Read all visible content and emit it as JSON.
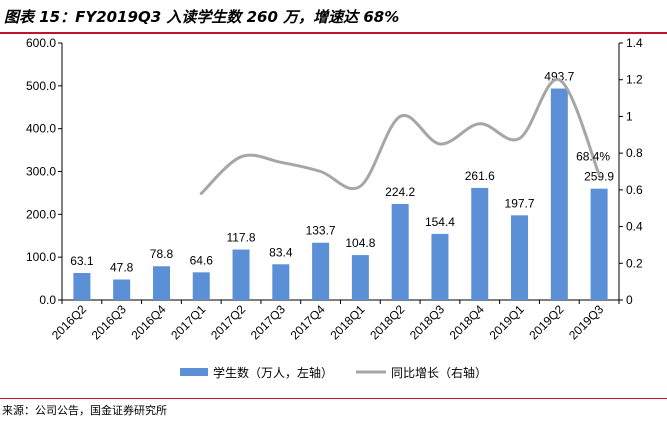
{
  "header": {
    "title": "图表 15：FY2019Q3 入读学生数 260 万，增速达 68%"
  },
  "footer": {
    "source": "来源：公司公告，国金证券研究所"
  },
  "colors": {
    "bar": "#5b8fd6",
    "line": "#a6a6a6",
    "rule": "#c8102e"
  },
  "chart_data": {
    "type": "bar",
    "categories": [
      "2016Q2",
      "2016Q3",
      "2016Q4",
      "2017Q1",
      "2017Q2",
      "2017Q3",
      "2017Q4",
      "2018Q1",
      "2018Q2",
      "2018Q3",
      "2018Q4",
      "2019Q1",
      "2019Q2",
      "2019Q3"
    ],
    "series": [
      {
        "name": "学生数（万人，左轴）",
        "type": "bar",
        "axis": "left",
        "values": [
          63.1,
          47.8,
          78.8,
          64.6,
          117.8,
          83.4,
          133.7,
          104.8,
          224.2,
          154.4,
          261.6,
          197.7,
          493.7,
          259.9
        ],
        "labels": [
          "63.1",
          "47.8",
          "78.8",
          "64.6",
          "117.8",
          "83.4",
          "133.7",
          "104.8",
          "224.2",
          "154.4",
          "261.6",
          "197.7",
          "493.7",
          "259.9"
        ]
      },
      {
        "name": "同比增长（右轴）",
        "type": "line",
        "axis": "right",
        "values": [
          null,
          null,
          null,
          0.58,
          0.78,
          0.75,
          0.7,
          0.62,
          1.0,
          0.85,
          0.96,
          0.88,
          1.2,
          0.684
        ]
      }
    ],
    "line_label": "68.4%",
    "y_left": {
      "ylim": [
        0,
        600
      ],
      "ticks": [
        "0.0",
        "100.0",
        "200.0",
        "300.0",
        "400.0",
        "500.0",
        "600.0"
      ]
    },
    "y_right": {
      "ylim": [
        0,
        1.4
      ],
      "ticks": [
        "0",
        "0.2",
        "0.4",
        "0.6",
        "0.8",
        "1",
        "1.2",
        "1.4"
      ]
    },
    "grid": false,
    "legend_position": "bottom"
  }
}
